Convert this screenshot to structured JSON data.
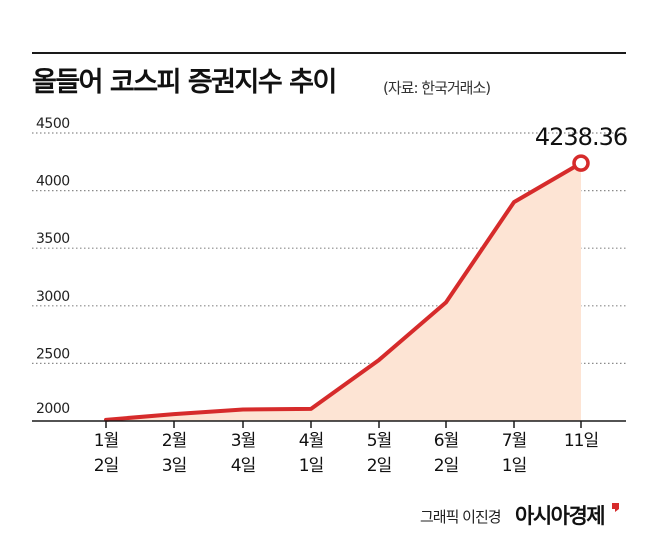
{
  "title": "올들어 코스피 증권지수 추이",
  "source": "(자료: 한국거래소)",
  "credit": "그래픽 이진경",
  "brand": "아시아경제",
  "colors": {
    "line": "#d62b2b",
    "fill": "#fde4d4",
    "grid": "#8a8a8a",
    "axis": "#1a1a1a"
  },
  "chart_data": {
    "type": "area",
    "title": "올들어 코스피 증권지수 추이",
    "xlabel": "",
    "ylabel": "",
    "ylim": [
      2000,
      4500
    ],
    "yticks": [
      2000,
      2500,
      3000,
      3500,
      4000,
      4500
    ],
    "grid": true,
    "categories": [
      [
        "1월",
        "2일"
      ],
      [
        "2월",
        "3일"
      ],
      [
        "3월",
        "4일"
      ],
      [
        "4월",
        "1일"
      ],
      [
        "5월",
        "2일"
      ],
      [
        "6월",
        "2일"
      ],
      [
        "7월",
        "1일"
      ],
      [
        "11일"
      ]
    ],
    "series": [
      {
        "name": "코스피 증권지수",
        "values": [
          2010,
          2060,
          2100,
          2105,
          2530,
          3030,
          3900,
          4238.36
        ]
      }
    ],
    "annotation": {
      "index": 7,
      "label": "4238.36"
    }
  }
}
